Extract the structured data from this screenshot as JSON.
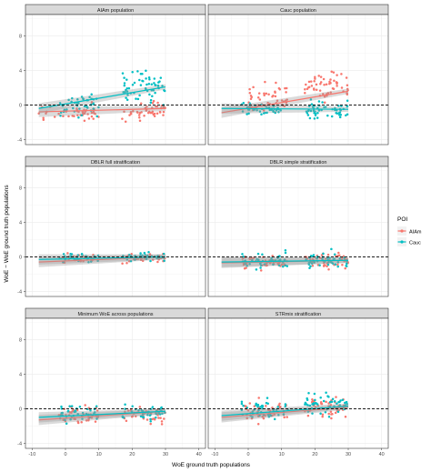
{
  "figure": {
    "ylabel": "WoE − WoE ground truth populations",
    "xlabel": "WoE ground truth populations"
  },
  "legend": {
    "title": "POI",
    "items": [
      {
        "label": "AIAm",
        "color": "#F8766D"
      },
      {
        "label": "Cauc",
        "color": "#00BFC4"
      }
    ]
  },
  "colors": {
    "aiam": "#F8766D",
    "cauc": "#00BFC4",
    "refline": "#000000",
    "strip": "#D9D9D9",
    "grid": "#EBEBEB"
  },
  "chart_data": {
    "type": "scatter",
    "facets": [
      "AIAm population",
      "Cauc population",
      "DBLR full stratification",
      "DBLR simple stratification",
      "Minimum WoE across populations",
      "STRmix stratification"
    ],
    "xlim": [
      -12,
      42
    ],
    "ylim": [
      -4.6,
      10.5
    ],
    "x_ticks": [
      -10,
      0,
      10,
      20,
      30,
      40
    ],
    "y_ticks": [
      -4,
      0,
      4,
      8
    ],
    "reference_line_y": 0,
    "reference_line_style": "dashed",
    "grid": true,
    "legend_position": "right",
    "panels": [
      {
        "title": "AIAm population",
        "trend": [
          {
            "series": "AIAm",
            "x": [
              -8,
              30
            ],
            "y": [
              -0.8,
              -0.4
            ]
          },
          {
            "series": "Cauc",
            "x": [
              -8,
              30
            ],
            "y": [
              -0.4,
              2.1
            ]
          }
        ],
        "clusters": [
          {
            "series": "AIAm",
            "x_range": [
              -8,
              10
            ],
            "y_center": -0.9,
            "y_spread": 0.8,
            "n": 45
          },
          {
            "series": "AIAm",
            "x_range": [
              17,
              30
            ],
            "y_center": -0.7,
            "y_spread": 0.8,
            "n": 45
          },
          {
            "series": "Cauc",
            "x_range": [
              -2,
              10
            ],
            "y_center": 0.0,
            "y_spread": 1.0,
            "n": 45
          },
          {
            "series": "Cauc",
            "x_range": [
              17,
              30
            ],
            "y_center": 2.0,
            "y_spread": 1.4,
            "n": 60
          }
        ]
      },
      {
        "title": "Cauc population",
        "trend": [
          {
            "series": "AIAm",
            "x": [
              -8,
              30
            ],
            "y": [
              -0.9,
              1.6
            ]
          },
          {
            "series": "Cauc",
            "x": [
              -8,
              30
            ],
            "y": [
              -0.4,
              -0.5
            ]
          }
        ],
        "clusters": [
          {
            "series": "AIAm",
            "x_range": [
              0,
              12
            ],
            "y_center": 0.9,
            "y_spread": 1.2,
            "n": 50
          },
          {
            "series": "AIAm",
            "x_range": [
              17,
              30
            ],
            "y_center": 2.1,
            "y_spread": 1.3,
            "n": 55
          },
          {
            "series": "Cauc",
            "x_range": [
              -2,
              10
            ],
            "y_center": -0.5,
            "y_spread": 0.5,
            "n": 40
          },
          {
            "series": "Cauc",
            "x_range": [
              17,
              30
            ],
            "y_center": -0.6,
            "y_spread": 0.8,
            "n": 55
          }
        ]
      },
      {
        "title": "DBLR full stratification",
        "trend": [
          {
            "series": "AIAm",
            "x": [
              -8,
              30
            ],
            "y": [
              -0.6,
              0.0
            ]
          },
          {
            "series": "Cauc",
            "x": [
              -8,
              30
            ],
            "y": [
              -0.3,
              0.0
            ]
          }
        ],
        "clusters": [
          {
            "series": "AIAm",
            "x_range": [
              -2,
              10
            ],
            "y_center": -0.3,
            "y_spread": 0.5,
            "n": 35
          },
          {
            "series": "AIAm",
            "x_range": [
              17,
              30
            ],
            "y_center": -0.2,
            "y_spread": 0.5,
            "n": 35
          },
          {
            "series": "Cauc",
            "x_range": [
              -2,
              10
            ],
            "y_center": -0.1,
            "y_spread": 0.4,
            "n": 35
          },
          {
            "series": "Cauc",
            "x_range": [
              17,
              30
            ],
            "y_center": 0.0,
            "y_spread": 0.4,
            "n": 35
          }
        ]
      },
      {
        "title": "DBLR simple stratification",
        "trend": [
          {
            "series": "AIAm",
            "x": [
              -8,
              30
            ],
            "y": [
              -0.7,
              -0.4
            ]
          },
          {
            "series": "Cauc",
            "x": [
              -8,
              30
            ],
            "y": [
              -0.6,
              -0.4
            ]
          }
        ],
        "clusters": [
          {
            "series": "AIAm",
            "x_range": [
              -2,
              12
            ],
            "y_center": -0.6,
            "y_spread": 0.8,
            "n": 45
          },
          {
            "series": "AIAm",
            "x_range": [
              17,
              30
            ],
            "y_center": -0.5,
            "y_spread": 0.8,
            "n": 45
          },
          {
            "series": "Cauc",
            "x_range": [
              -2,
              12
            ],
            "y_center": -0.4,
            "y_spread": 0.8,
            "n": 45
          },
          {
            "series": "Cauc",
            "x_range": [
              17,
              30
            ],
            "y_center": -0.4,
            "y_spread": 0.8,
            "n": 45
          }
        ]
      },
      {
        "title": "Minimum WoE across populations",
        "trend": [
          {
            "series": "AIAm",
            "x": [
              -8,
              30
            ],
            "y": [
              -1.3,
              -0.3
            ]
          },
          {
            "series": "Cauc",
            "x": [
              -8,
              30
            ],
            "y": [
              -1.0,
              -0.3
            ]
          }
        ],
        "clusters": [
          {
            "series": "AIAm",
            "x_range": [
              -2,
              10
            ],
            "y_center": -0.7,
            "y_spread": 0.8,
            "n": 40
          },
          {
            "series": "AIAm",
            "x_range": [
              17,
              30
            ],
            "y_center": -0.6,
            "y_spread": 0.8,
            "n": 40
          },
          {
            "series": "Cauc",
            "x_range": [
              -2,
              10
            ],
            "y_center": -0.5,
            "y_spread": 0.8,
            "n": 40
          },
          {
            "series": "Cauc",
            "x_range": [
              17,
              30
            ],
            "y_center": -0.5,
            "y_spread": 0.8,
            "n": 40
          }
        ]
      },
      {
        "title": "STRmix stratification",
        "trend": [
          {
            "series": "AIAm",
            "x": [
              -8,
              30
            ],
            "y": [
              -1.0,
              0.2
            ]
          },
          {
            "series": "Cauc",
            "x": [
              -8,
              30
            ],
            "y": [
              -0.8,
              0.3
            ]
          }
        ],
        "clusters": [
          {
            "series": "AIAm",
            "x_range": [
              -2,
              12
            ],
            "y_center": -0.3,
            "y_spread": 1.0,
            "n": 45
          },
          {
            "series": "AIAm",
            "x_range": [
              17,
              30
            ],
            "y_center": 0.2,
            "y_spread": 1.0,
            "n": 45
          },
          {
            "series": "Cauc",
            "x_range": [
              -2,
              12
            ],
            "y_center": -0.2,
            "y_spread": 1.0,
            "n": 45
          },
          {
            "series": "Cauc",
            "x_range": [
              17,
              30
            ],
            "y_center": 0.5,
            "y_spread": 1.1,
            "n": 55
          }
        ]
      }
    ]
  }
}
